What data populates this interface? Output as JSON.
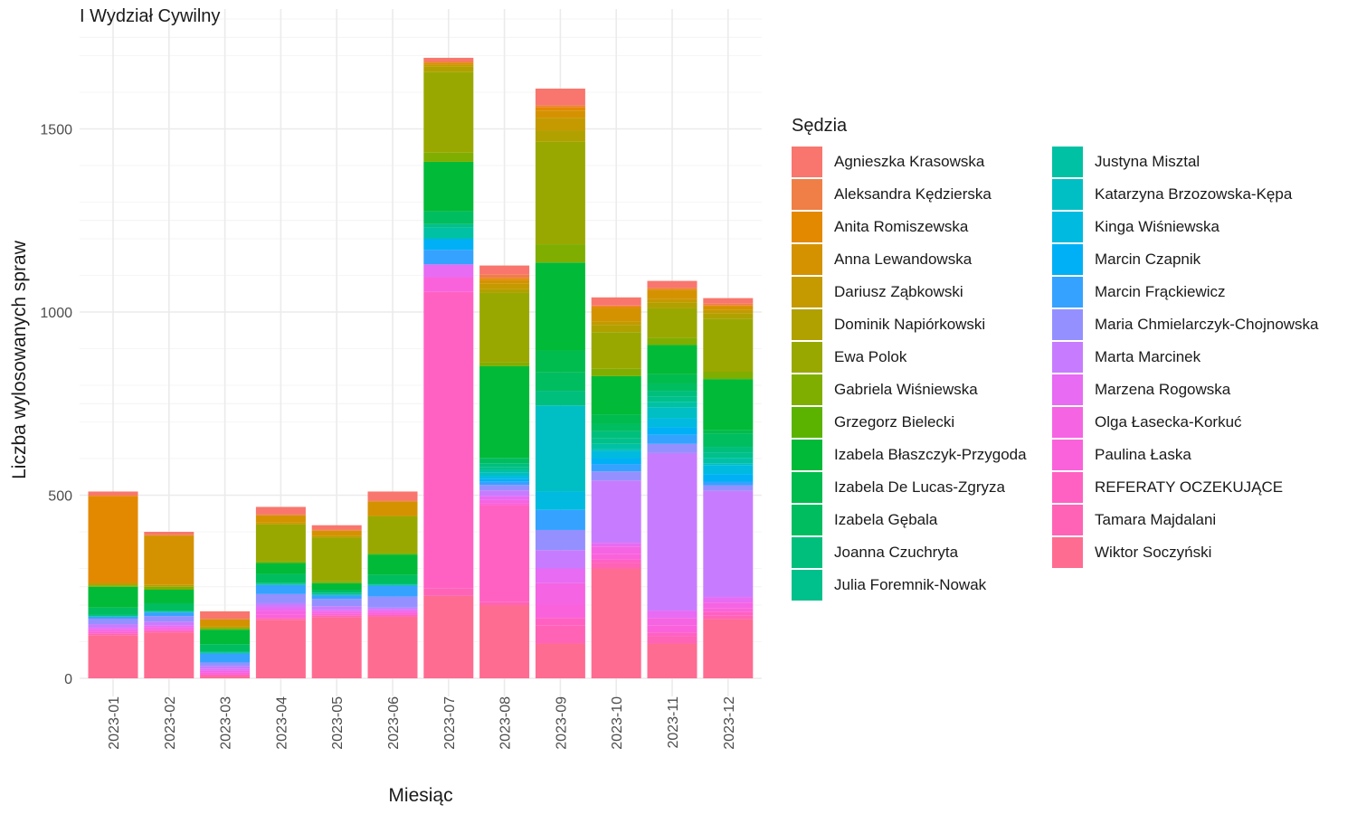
{
  "chart_data": {
    "type": "bar",
    "stacked": true,
    "title": "I Wydział Cywilny",
    "xlabel": "Miesiąc",
    "ylabel": "Liczba wylosowanych spraw",
    "ylim": [
      0,
      1820
    ],
    "yticks": [
      0,
      500,
      1000,
      1500
    ],
    "grid": true,
    "legend_position": "right",
    "legend_title": "Sędzia",
    "categories": [
      "2023-01",
      "2023-02",
      "2023-03",
      "2023-04",
      "2023-05",
      "2023-06",
      "2023-07",
      "2023-08",
      "2023-09",
      "2023-10",
      "2023-11",
      "2023-12"
    ],
    "series": [
      {
        "name": "Agnieszka Krasowska",
        "color": "#F8766D",
        "values": [
          10,
          8,
          20,
          20,
          12,
          25,
          10,
          25,
          45,
          22,
          20,
          15
        ]
      },
      {
        "name": "Aleksandra Kędzierska",
        "color": "#EF7F46",
        "values": [
          2,
          2,
          2,
          3,
          3,
          2,
          3,
          10,
          5,
          3,
          2,
          5
        ]
      },
      {
        "name": "Anita Romiszewska",
        "color": "#E38900",
        "values": [
          235,
          0,
          0,
          0,
          0,
          0,
          2,
          5,
          10,
          5,
          3,
          3
        ]
      },
      {
        "name": "Anna Lewandowska",
        "color": "#D49200",
        "values": [
          5,
          135,
          18,
          20,
          15,
          40,
          4,
          10,
          20,
          35,
          25,
          8
        ]
      },
      {
        "name": "Dariusz Ząbkowski",
        "color": "#C49A00",
        "values": [
          0,
          0,
          5,
          5,
          3,
          0,
          5,
          15,
          35,
          10,
          10,
          10
        ]
      },
      {
        "name": "Dominik Napiórkowski",
        "color": "#B0A100",
        "values": [
          4,
          5,
          0,
          0,
          0,
          0,
          15,
          10,
          30,
          20,
          15,
          15
        ]
      },
      {
        "name": "Ewa Polok",
        "color": "#99A800",
        "values": [
          0,
          0,
          0,
          100,
          120,
          100,
          220,
          190,
          280,
          100,
          80,
          145
        ]
      },
      {
        "name": "Gabriela Wiśniewska",
        "color": "#7FAE00",
        "values": [
          4,
          8,
          5,
          5,
          5,
          5,
          25,
          10,
          50,
          20,
          20,
          20
        ]
      },
      {
        "name": "Grzegorz Bielecki",
        "color": "#5BB300",
        "values": [
          0,
          0,
          0,
          0,
          0,
          0,
          0,
          0,
          0,
          0,
          0,
          0
        ]
      },
      {
        "name": "Izabela Błaszczyk-Przygoda",
        "color": "#00BA38",
        "values": [
          57,
          37,
          40,
          30,
          18,
          55,
          135,
          250,
          240,
          105,
          80,
          140
        ]
      },
      {
        "name": "Izabela De Lucas-Zgryza",
        "color": "#00BB4E",
        "values": [
          0,
          0,
          0,
          0,
          0,
          0,
          0,
          0,
          60,
          25,
          25,
          10
        ]
      },
      {
        "name": "Izabela Gębala",
        "color": "#00BD5F",
        "values": [
          20,
          20,
          20,
          25,
          8,
          25,
          35,
          15,
          50,
          20,
          20,
          35
        ]
      },
      {
        "name": "Joanna Czuchryta",
        "color": "#00BF7D",
        "values": [
          0,
          0,
          0,
          0,
          0,
          0,
          0,
          10,
          40,
          20,
          15,
          15
        ]
      },
      {
        "name": "Julia Foremnik-Nowak",
        "color": "#00C08B",
        "values": [
          3,
          3,
          3,
          3,
          5,
          3,
          10,
          8,
          0,
          15,
          15,
          15
        ]
      },
      {
        "name": "Justyna Misztal",
        "color": "#00C1A3",
        "values": [
          2,
          2,
          2,
          2,
          2,
          2,
          30,
          8,
          0,
          15,
          15,
          15
        ]
      },
      {
        "name": "Katarzyna Brzozowska-Kępa",
        "color": "#00BFC4",
        "values": [
          0,
          0,
          0,
          0,
          0,
          0,
          0,
          8,
          235,
          5,
          30,
          5
        ]
      },
      {
        "name": "Kinga Wiśniewska",
        "color": "#00BAE0",
        "values": [
          0,
          0,
          0,
          0,
          0,
          0,
          0,
          8,
          50,
          20,
          25,
          25
        ]
      },
      {
        "name": "Marcin Czapnik",
        "color": "#00B0F6",
        "values": [
          0,
          0,
          0,
          0,
          0,
          0,
          30,
          7,
          0,
          15,
          20,
          20
        ]
      },
      {
        "name": "Marcin Frąckiewicz",
        "color": "#35A2FF",
        "values": [
          5,
          10,
          25,
          25,
          10,
          30,
          40,
          10,
          55,
          20,
          25,
          10
        ]
      },
      {
        "name": "Maria Chmielarczyk-Chojnowska",
        "color": "#9590FF",
        "values": [
          15,
          15,
          10,
          25,
          20,
          30,
          0,
          15,
          55,
          25,
          25,
          15
        ]
      },
      {
        "name": "Marta Marcinek",
        "color": "#C77CFF",
        "values": [
          10,
          10,
          8,
          10,
          10,
          5,
          0,
          15,
          50,
          170,
          430,
          290
        ]
      },
      {
        "name": "Marzena Rogowska",
        "color": "#E76BF3",
        "values": [
          5,
          5,
          5,
          10,
          5,
          5,
          35,
          10,
          40,
          10,
          20,
          15
        ]
      },
      {
        "name": "Olga Łasecka-Korkuć",
        "color": "#F564E3",
        "values": [
          5,
          5,
          5,
          10,
          5,
          5,
          0,
          10,
          60,
          20,
          20,
          15
        ]
      },
      {
        "name": "Paulina Łaska",
        "color": "#FA62DB",
        "values": [
          5,
          5,
          5,
          10,
          5,
          5,
          40,
          5,
          35,
          15,
          20,
          10
        ]
      },
      {
        "name": "REFERATY OCZEKUJĄCE",
        "color": "#FF61C3",
        "values": [
          0,
          0,
          0,
          0,
          0,
          0,
          810,
          265,
          20,
          10,
          10,
          10
        ]
      },
      {
        "name": "Tamara Majdalani",
        "color": "#FF63B6",
        "values": [
          5,
          5,
          5,
          5,
          5,
          5,
          20,
          8,
          50,
          15,
          20,
          10
        ]
      },
      {
        "name": "Wiktor Soczyński",
        "color": "#FF6C91",
        "values": [
          118,
          125,
          5,
          160,
          167,
          168,
          225,
          200,
          95,
          300,
          95,
          162
        ]
      }
    ]
  }
}
